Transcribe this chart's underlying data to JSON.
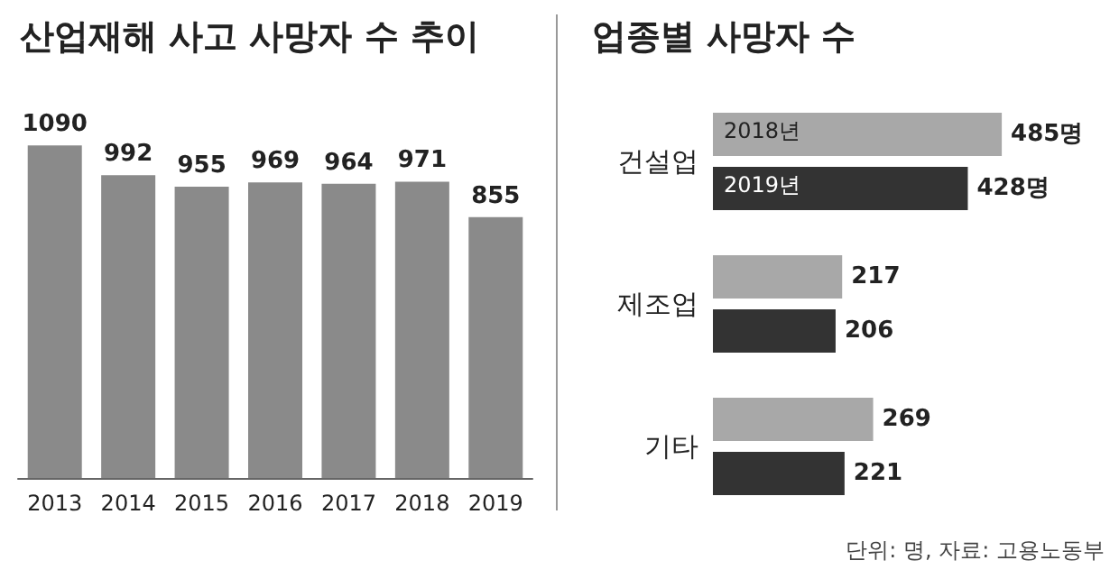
{
  "chart_data": [
    {
      "type": "bar",
      "title": "산업재해 사고 사망자 수 추이",
      "categories": [
        "2013",
        "2014",
        "2015",
        "2016",
        "2017",
        "2018",
        "2019"
      ],
      "values": [
        1090,
        992,
        955,
        969,
        964,
        971,
        855
      ],
      "color": "#8a8a8a",
      "data_labels": true,
      "tick_labels": "x"
    },
    {
      "type": "bar",
      "orientation": "horizontal",
      "title": "업종별 사망자 수",
      "categories": [
        "건설업",
        "제조업",
        "기타"
      ],
      "series": [
        {
          "name": "2018년",
          "color": "#a8a8a8",
          "values": [
            485,
            217,
            269
          ],
          "value_labels": [
            "485명",
            "217",
            "269"
          ]
        },
        {
          "name": "2019년",
          "color": "#333333",
          "values": [
            428,
            206,
            221
          ],
          "value_labels": [
            "428명",
            "206",
            "221"
          ]
        }
      ],
      "tick_labels": "y",
      "annotations": [
        "단위: 명, 자료: 고용노동부"
      ]
    }
  ]
}
